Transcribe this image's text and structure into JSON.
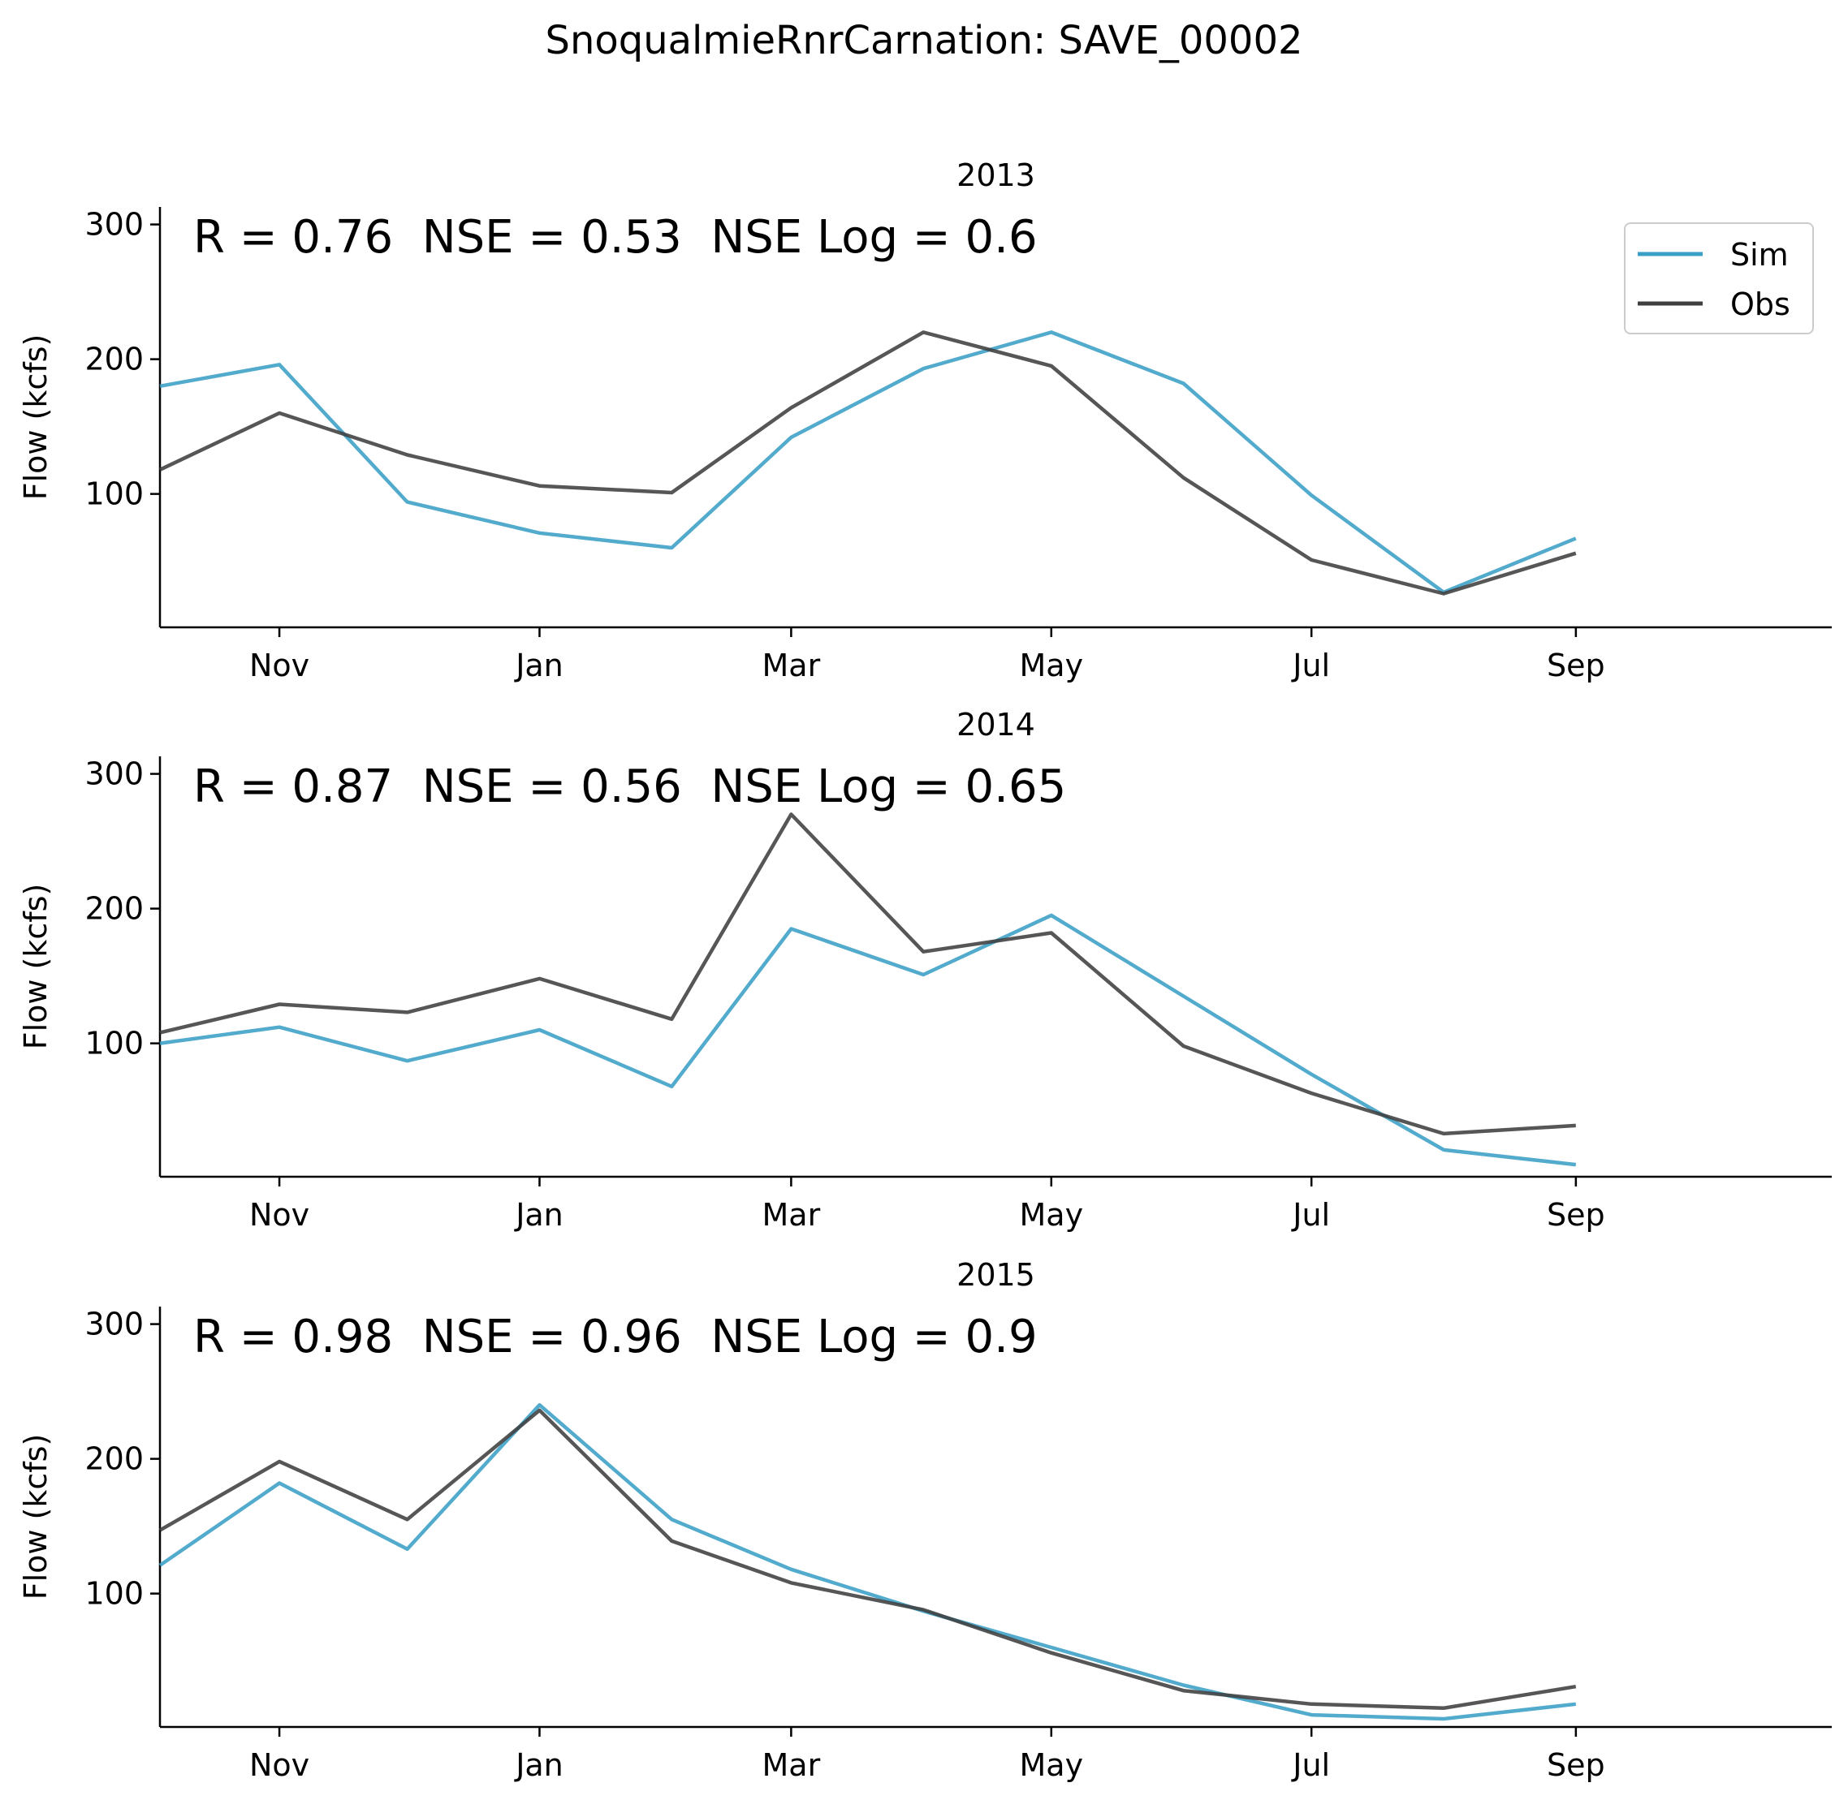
{
  "figure": {
    "title": "SnoqualmieRnrCarnation: SAVE_00002"
  },
  "colors": {
    "sim": "#3a9fc6",
    "obs": "#3f3f3f",
    "axis": "#000000"
  },
  "chart_data": [
    {
      "type": "line",
      "title": "2013",
      "annotation": "R = 0.76  NSE = 0.53  NSE Log = 0.6",
      "xlabel": "",
      "ylabel": "Flow (kcfs)",
      "ylim": [
        1,
        313
      ],
      "yticks": [
        100,
        200,
        300
      ],
      "xlim": [
        "2012-10-04",
        "2013-10-31"
      ],
      "xticks": [
        {
          "date": "2012-11-01",
          "label": "Nov"
        },
        {
          "date": "2013-01-01",
          "label": "Jan"
        },
        {
          "date": "2013-03-01",
          "label": "Mar"
        },
        {
          "date": "2013-05-01",
          "label": "May"
        },
        {
          "date": "2013-07-01",
          "label": "Jul"
        },
        {
          "date": "2013-09-01",
          "label": "Sep"
        }
      ],
      "legend": {
        "show": true,
        "loc": "upper right",
        "entries": [
          "Sim",
          "Obs"
        ]
      },
      "grid": false,
      "series": [
        {
          "name": "Sim",
          "color": "#3a9fc6",
          "x": [
            "2012-10-04",
            "2012-11-01",
            "2012-12-01",
            "2013-01-01",
            "2013-02-01",
            "2013-03-01",
            "2013-04-01",
            "2013-05-01",
            "2013-06-01",
            "2013-07-01",
            "2013-08-01",
            "2013-09-01"
          ],
          "y": [
            180,
            196,
            94,
            71,
            60,
            142,
            193,
            220,
            182,
            99,
            27,
            67
          ]
        },
        {
          "name": "Obs",
          "color": "#3f3f3f",
          "x": [
            "2012-10-04",
            "2012-11-01",
            "2012-12-01",
            "2013-01-01",
            "2013-02-01",
            "2013-03-01",
            "2013-04-01",
            "2013-05-01",
            "2013-06-01",
            "2013-07-01",
            "2013-08-01",
            "2013-09-01"
          ],
          "y": [
            118,
            160,
            129,
            106,
            101,
            164,
            220,
            195,
            112,
            51,
            26,
            56
          ]
        }
      ]
    },
    {
      "type": "line",
      "title": "2014",
      "annotation": "R = 0.87  NSE = 0.56  NSE Log = 0.65",
      "xlabel": "",
      "ylabel": "Flow (kcfs)",
      "ylim": [
        1,
        313
      ],
      "yticks": [
        100,
        200,
        300
      ],
      "xlim": [
        "2013-10-04",
        "2014-10-31"
      ],
      "xticks": [
        {
          "date": "2013-11-01",
          "label": "Nov"
        },
        {
          "date": "2014-01-01",
          "label": "Jan"
        },
        {
          "date": "2014-03-01",
          "label": "Mar"
        },
        {
          "date": "2014-05-01",
          "label": "May"
        },
        {
          "date": "2014-07-01",
          "label": "Jul"
        },
        {
          "date": "2014-09-01",
          "label": "Sep"
        }
      ],
      "legend": {
        "show": false
      },
      "grid": false,
      "series": [
        {
          "name": "Sim",
          "color": "#3a9fc6",
          "x": [
            "2013-10-04",
            "2013-11-01",
            "2013-12-01",
            "2014-01-01",
            "2014-02-01",
            "2014-03-01",
            "2014-04-01",
            "2014-05-01",
            "2014-06-01",
            "2014-07-01",
            "2014-08-01",
            "2014-09-01"
          ],
          "y": [
            100,
            112,
            87,
            110,
            68,
            185,
            151,
            195,
            135,
            77,
            21,
            10
          ]
        },
        {
          "name": "Obs",
          "color": "#3f3f3f",
          "x": [
            "2013-10-04",
            "2013-11-01",
            "2013-12-01",
            "2014-01-01",
            "2014-02-01",
            "2014-03-01",
            "2014-04-01",
            "2014-05-01",
            "2014-06-01",
            "2014-07-01",
            "2014-08-01",
            "2014-09-01"
          ],
          "y": [
            108,
            129,
            123,
            148,
            118,
            270,
            168,
            182,
            98,
            63,
            33,
            39
          ]
        }
      ]
    },
    {
      "type": "line",
      "title": "2015",
      "annotation": "R = 0.98  NSE = 0.96  NSE Log = 0.9",
      "xlabel": "",
      "ylabel": "Flow (kcfs)",
      "ylim": [
        1,
        313
      ],
      "yticks": [
        100,
        200,
        300
      ],
      "xlim": [
        "2014-10-04",
        "2015-10-31"
      ],
      "xticks": [
        {
          "date": "2014-11-01",
          "label": "Nov"
        },
        {
          "date": "2015-01-01",
          "label": "Jan"
        },
        {
          "date": "2015-03-01",
          "label": "Mar"
        },
        {
          "date": "2015-05-01",
          "label": "May"
        },
        {
          "date": "2015-07-01",
          "label": "Jul"
        },
        {
          "date": "2015-09-01",
          "label": "Sep"
        }
      ],
      "legend": {
        "show": false
      },
      "grid": false,
      "series": [
        {
          "name": "Sim",
          "color": "#3a9fc6",
          "x": [
            "2014-10-04",
            "2014-11-01",
            "2014-12-01",
            "2015-01-01",
            "2015-02-01",
            "2015-03-01",
            "2015-04-01",
            "2015-05-01",
            "2015-06-01",
            "2015-07-01",
            "2015-08-01",
            "2015-09-01"
          ],
          "y": [
            121,
            182,
            133,
            240,
            155,
            118,
            87,
            60,
            32,
            10,
            7,
            18
          ]
        },
        {
          "name": "Obs",
          "color": "#3f3f3f",
          "x": [
            "2014-10-04",
            "2014-11-01",
            "2014-12-01",
            "2015-01-01",
            "2015-02-01",
            "2015-03-01",
            "2015-04-01",
            "2015-05-01",
            "2015-06-01",
            "2015-07-01",
            "2015-08-01",
            "2015-09-01"
          ],
          "y": [
            147,
            198,
            155,
            236,
            139,
            108,
            88,
            56,
            28,
            18,
            15,
            31
          ]
        }
      ]
    }
  ]
}
